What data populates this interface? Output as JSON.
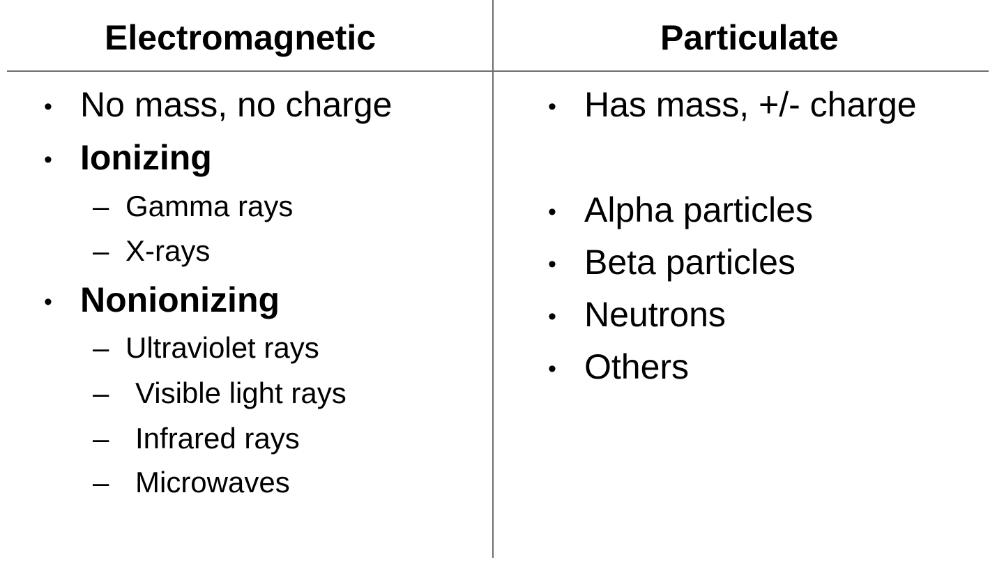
{
  "columns": {
    "left": {
      "heading": "Electromagnetic",
      "items": [
        {
          "text": "No mass, no charge",
          "bold": false
        },
        {
          "text": "Ionizing",
          "bold": true,
          "subitems": [
            "Gamma rays",
            "X-rays"
          ]
        },
        {
          "text": "Nonionizing",
          "bold": true,
          "subitems": [
            "Ultraviolet rays",
            "Visible light rays",
            "Infrared rays",
            "Microwaves"
          ]
        }
      ]
    },
    "right": {
      "heading": "Particulate",
      "items": [
        {
          "text": "Has mass, +/- charge"
        },
        {
          "text": "Alpha particles"
        },
        {
          "text": "Beta particles"
        },
        {
          "text": "Neutrons"
        },
        {
          "text": "Others"
        }
      ]
    }
  },
  "glyphs": {
    "bullet": "•",
    "dash": "–"
  },
  "colors": {
    "text": "#000000",
    "rule": "#6e6e6e",
    "background": "#ffffff"
  }
}
